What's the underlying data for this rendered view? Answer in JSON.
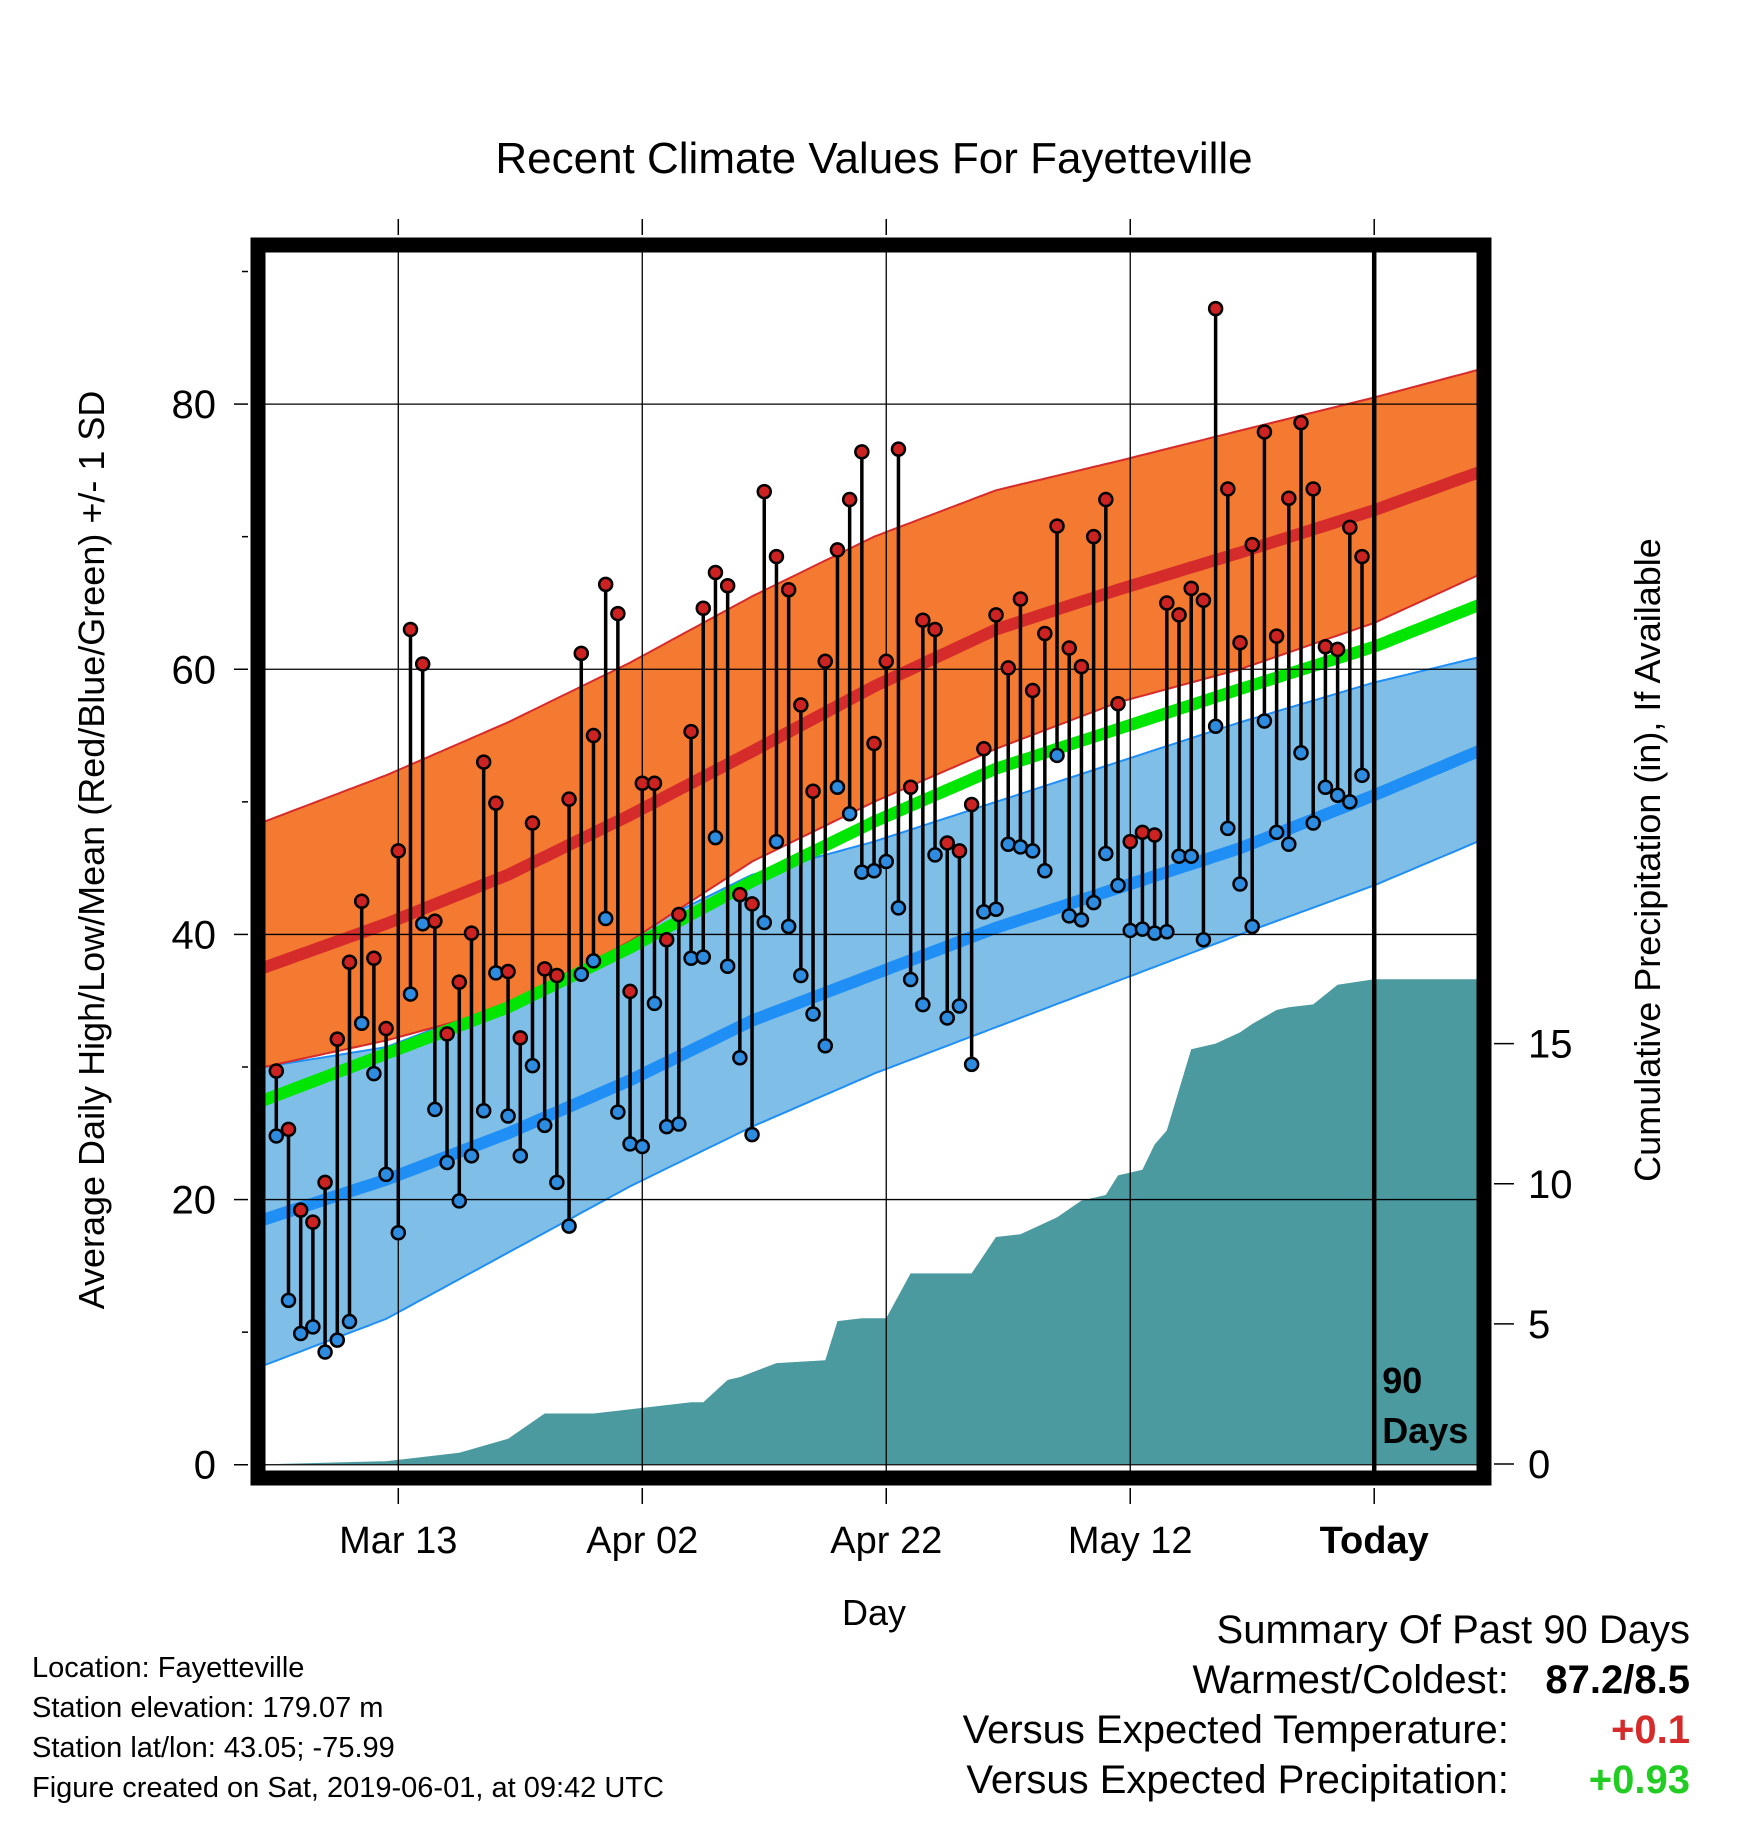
{
  "chart_data": {
    "type": "line",
    "title": "Recent Climate Values For Fayetteville",
    "xlabel": "Day",
    "ylabel": "Average Daily High/Low/Mean (Red/Blue/Green) +/- 1 SD",
    "y2label": "Cumulative Precipitation (in), If Available",
    "x_ticks": [
      "Mar 13",
      "Apr 02",
      "Apr 22",
      "May 12",
      "Today"
    ],
    "x_tick_days": [
      -80,
      -60,
      -40,
      -20,
      0
    ],
    "xlim": [
      -91.5,
      9
    ],
    "ylim": [
      -1,
      92
    ],
    "y_ticks": [
      0,
      20,
      40,
      60,
      80
    ],
    "y2_ticks": [
      0,
      5,
      10,
      15
    ],
    "y2lim": [
      -0.5,
      43.5
    ],
    "today_label": "90\nDays",
    "grid": true,
    "colors": {
      "high_band": "#f47a32",
      "high_line": "#d62b2b",
      "low_band": "#7fbee6",
      "low_line": "#1f8ff5",
      "mean_line": "#00e600",
      "precip": "#4a9aa0",
      "high_dot": "#cc2222",
      "low_dot": "#2d8be0"
    },
    "normals": {
      "days": [
        -91,
        -81,
        -71,
        -61,
        -51,
        -41,
        -31,
        -21,
        -11,
        0,
        9
      ],
      "high_mean": [
        37.5,
        40.8,
        44.5,
        49.0,
        53.8,
        58.7,
        63.0,
        66.0,
        68.8,
        72.0,
        75.0
      ],
      "high_upper": [
        48.5,
        52.0,
        56.0,
        60.5,
        65.5,
        70.0,
        73.5,
        75.7,
        78.0,
        80.5,
        82.7
      ],
      "high_lower": [
        30.0,
        32.0,
        34.5,
        39.5,
        45.5,
        50.0,
        54.0,
        57.5,
        60.0,
        63.5,
        67.3
      ],
      "low_mean": [
        18.5,
        21.5,
        25.0,
        29.0,
        33.5,
        37.0,
        40.5,
        43.5,
        46.5,
        50.5,
        54.0
      ],
      "low_upper": [
        30.0,
        31.5,
        35.0,
        40.0,
        44.5,
        47.0,
        50.0,
        53.0,
        56.0,
        59.0,
        61.0
      ],
      "low_lower": [
        7.5,
        11.0,
        16.0,
        21.0,
        25.5,
        29.5,
        33.0,
        36.5,
        40.0,
        43.7,
        47.2
      ],
      "mean": [
        27.5,
        31.0,
        34.5,
        39.0,
        44.0,
        48.5,
        52.5,
        55.5,
        58.5,
        61.7,
        65.0
      ]
    },
    "daily_high": [
      29.7,
      25.3,
      19.2,
      18.3,
      21.3,
      32.1,
      37.9,
      42.5,
      38.2,
      32.9,
      46.3,
      63.0,
      60.4,
      41.0,
      32.5,
      36.4,
      40.1,
      53.0,
      49.9,
      37.2,
      32.2,
      48.4,
      37.4,
      36.9,
      50.2,
      61.2,
      55.0,
      66.4,
      64.2,
      35.7,
      51.4,
      51.4,
      39.6,
      41.5,
      55.3,
      64.6,
      67.3,
      66.3,
      43.0,
      42.3,
      73.4,
      68.5,
      66.0,
      57.3,
      50.8,
      60.6,
      69.0,
      72.8,
      76.4,
      54.4,
      60.6,
      76.6,
      51.1,
      63.7,
      63.0,
      46.9,
      46.3,
      49.8,
      54.0,
      64.1,
      60.1,
      65.3,
      58.4,
      62.7,
      70.8,
      61.6,
      60.2,
      70.0,
      72.8,
      57.4,
      47.0,
      47.7,
      47.5,
      65.0,
      64.1,
      66.1,
      65.2,
      87.2,
      73.6,
      62.0,
      69.4,
      77.9,
      62.5,
      72.9,
      78.6,
      73.6,
      61.7,
      61.5,
      70.7,
      68.5
    ],
    "daily_low": [
      24.8,
      12.4,
      9.9,
      10.4,
      8.5,
      9.4,
      10.8,
      33.3,
      29.5,
      21.9,
      17.5,
      35.5,
      40.8,
      26.8,
      22.8,
      19.9,
      23.3,
      26.7,
      37.1,
      26.3,
      23.3,
      30.1,
      25.6,
      21.3,
      18.0,
      37.0,
      38.0,
      41.2,
      26.6,
      24.2,
      24.0,
      34.8,
      25.5,
      25.7,
      38.2,
      38.3,
      47.3,
      37.6,
      30.7,
      24.9,
      40.9,
      47.0,
      40.6,
      36.9,
      34.0,
      31.6,
      51.1,
      49.1,
      44.7,
      44.8,
      45.5,
      42.0,
      36.6,
      34.7,
      46.0,
      33.7,
      34.6,
      30.2,
      41.7,
      41.9,
      46.8,
      46.6,
      46.3,
      44.8,
      53.5,
      41.4,
      41.1,
      42.4,
      46.1,
      43.7,
      40.3,
      40.4,
      40.1,
      40.2,
      45.9,
      45.9,
      39.6,
      55.7,
      48.0,
      43.8,
      40.6,
      56.1,
      47.7,
      46.8,
      53.7,
      48.4,
      51.1,
      50.5,
      50.0,
      52.0
    ],
    "precip_cumulative": {
      "days": [
        -90,
        -81,
        -75,
        -71,
        -68,
        -64,
        -62,
        -56,
        -55,
        -53,
        -52,
        -49,
        -45,
        -44,
        -42,
        -40,
        -38,
        -36,
        -33,
        -31,
        -29,
        -26,
        -24,
        -22,
        -21,
        -20,
        -19,
        -18,
        -17,
        -15,
        -13,
        -11,
        -10,
        -8,
        -7,
        -5,
        -3,
        0,
        9
      ],
      "values": [
        0.0,
        0.1,
        0.4,
        0.9,
        1.8,
        1.8,
        1.9,
        2.2,
        2.2,
        3.0,
        3.1,
        3.6,
        3.7,
        5.1,
        5.2,
        5.2,
        6.8,
        6.8,
        6.8,
        8.1,
        8.2,
        8.8,
        9.4,
        9.6,
        10.3,
        10.4,
        10.5,
        11.4,
        11.9,
        14.8,
        15.0,
        15.4,
        15.7,
        16.2,
        16.3,
        16.4,
        17.1,
        17.3,
        17.3
      ]
    }
  },
  "info": {
    "location": "Location: Fayetteville",
    "elevation": "Station elevation: 179.07 m",
    "latlon": "Station lat/lon: 43.05; -75.99",
    "created": "Figure created on Sat, 2019-06-01, at 09:42 UTC"
  },
  "summary": {
    "title": "Summary Of Past 90 Days",
    "warmest_label": "Warmest/Coldest:",
    "warmest_value": "87.2/8.5",
    "temp_label": "Versus Expected Temperature:",
    "temp_value": "+0.1",
    "temp_color": "#d62b2b",
    "precip_label": "Versus Expected Precipitation:",
    "precip_value": "+0.93",
    "precip_color": "#22cc22"
  }
}
